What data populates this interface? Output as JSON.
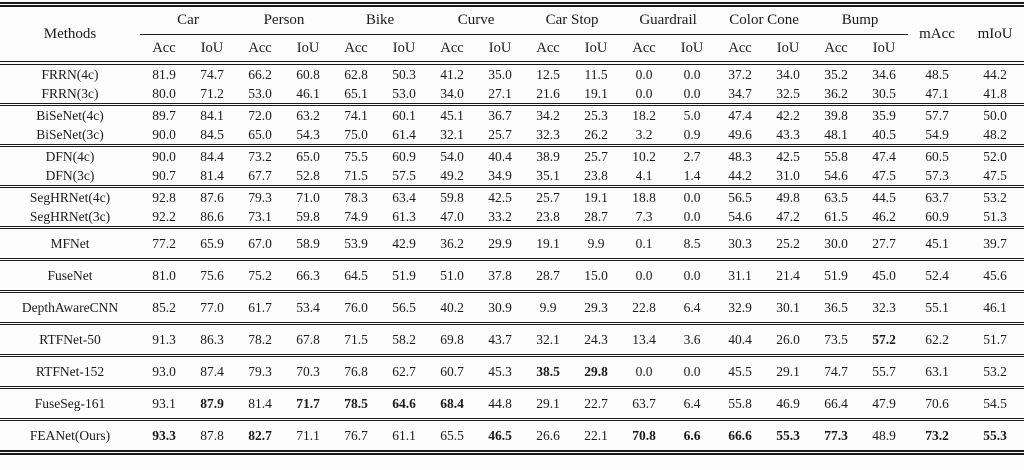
{
  "colors": {
    "text": "#1a1a1a",
    "rule": "#1a1a1a",
    "background": "#fdfdfd"
  },
  "table": {
    "method_header": "Methods",
    "groups": [
      "Car",
      "Person",
      "Bike",
      "Curve",
      "Car Stop",
      "Guardrail",
      "Color Cone",
      "Bump"
    ],
    "sub_labels": [
      "Acc",
      "IoU"
    ],
    "summary_headers": [
      "mAcc",
      "mIoU"
    ],
    "row_groups": [
      {
        "rows": [
          {
            "method": "FRRN(4c)",
            "values": [
              "81.9",
              "74.7",
              "66.2",
              "60.8",
              "62.8",
              "50.3",
              "41.2",
              "35.0",
              "12.5",
              "11.5",
              "0.0",
              "0.0",
              "37.2",
              "34.0",
              "35.2",
              "34.6",
              "48.5",
              "44.2"
            ],
            "bold": []
          },
          {
            "method": "FRRN(3c)",
            "values": [
              "80.0",
              "71.2",
              "53.0",
              "46.1",
              "65.1",
              "53.0",
              "34.0",
              "27.1",
              "21.6",
              "19.1",
              "0.0",
              "0.0",
              "34.7",
              "32.5",
              "36.2",
              "30.5",
              "47.1",
              "41.8"
            ],
            "bold": []
          }
        ]
      },
      {
        "rows": [
          {
            "method": "BiSeNet(4c)",
            "values": [
              "89.7",
              "84.1",
              "72.0",
              "63.2",
              "74.1",
              "60.1",
              "45.1",
              "36.7",
              "34.2",
              "25.3",
              "18.2",
              "5.0",
              "47.4",
              "42.2",
              "39.8",
              "35.9",
              "57.7",
              "50.0"
            ],
            "bold": []
          },
          {
            "method": "BiSeNet(3c)",
            "values": [
              "90.0",
              "84.5",
              "65.0",
              "54.3",
              "75.0",
              "61.4",
              "32.1",
              "25.7",
              "32.3",
              "26.2",
              "3.2",
              "0.9",
              "49.6",
              "43.3",
              "48.1",
              "40.5",
              "54.9",
              "48.2"
            ],
            "bold": []
          }
        ]
      },
      {
        "rows": [
          {
            "method": "DFN(4c)",
            "values": [
              "90.0",
              "84.4",
              "73.2",
              "65.0",
              "75.5",
              "60.9",
              "54.0",
              "40.4",
              "38.9",
              "25.7",
              "10.2",
              "2.7",
              "48.3",
              "42.5",
              "55.8",
              "47.4",
              "60.5",
              "52.0"
            ],
            "bold": []
          },
          {
            "method": "DFN(3c)",
            "values": [
              "90.7",
              "81.4",
              "67.7",
              "52.8",
              "71.5",
              "57.5",
              "49.2",
              "34.9",
              "35.1",
              "23.8",
              "4.1",
              "1.4",
              "44.2",
              "31.0",
              "54.6",
              "47.5",
              "57.3",
              "47.5"
            ],
            "bold": []
          }
        ]
      },
      {
        "rows": [
          {
            "method": "SegHRNet(4c)",
            "values": [
              "92.8",
              "87.6",
              "79.3",
              "71.0",
              "78.3",
              "63.4",
              "59.8",
              "42.5",
              "25.7",
              "19.1",
              "18.8",
              "0.0",
              "56.5",
              "49.8",
              "63.5",
              "44.5",
              "63.7",
              "53.2"
            ],
            "bold": []
          },
          {
            "method": "SegHRNet(3c)",
            "values": [
              "92.2",
              "86.6",
              "73.1",
              "59.8",
              "74.9",
              "61.3",
              "47.0",
              "33.2",
              "23.8",
              "28.7",
              "7.3",
              "0.0",
              "54.6",
              "47.2",
              "61.5",
              "46.2",
              "60.9",
              "51.3"
            ],
            "bold": []
          }
        ]
      },
      {
        "rows": [
          {
            "method": "MFNet",
            "values": [
              "77.2",
              "65.9",
              "67.0",
              "58.9",
              "53.9",
              "42.9",
              "36.2",
              "29.9",
              "19.1",
              "9.9",
              "0.1",
              "8.5",
              "30.3",
              "25.2",
              "30.0",
              "27.7",
              "45.1",
              "39.7"
            ],
            "bold": []
          }
        ]
      },
      {
        "rows": [
          {
            "method": "FuseNet",
            "values": [
              "81.0",
              "75.6",
              "75.2",
              "66.3",
              "64.5",
              "51.9",
              "51.0",
              "37.8",
              "28.7",
              "15.0",
              "0.0",
              "0.0",
              "31.1",
              "21.4",
              "51.9",
              "45.0",
              "52.4",
              "45.6"
            ],
            "bold": []
          }
        ]
      },
      {
        "rows": [
          {
            "method": "DepthAwareCNN",
            "values": [
              "85.2",
              "77.0",
              "61.7",
              "53.4",
              "76.0",
              "56.5",
              "40.2",
              "30.9",
              "9.9",
              "29.3",
              "22.8",
              "6.4",
              "32.9",
              "30.1",
              "36.5",
              "32.3",
              "55.1",
              "46.1"
            ],
            "bold": []
          }
        ]
      },
      {
        "rows": [
          {
            "method": "RTFNet-50",
            "values": [
              "91.3",
              "86.3",
              "78.2",
              "67.8",
              "71.5",
              "58.2",
              "69.8",
              "43.7",
              "32.1",
              "24.3",
              "13.4",
              "3.6",
              "40.4",
              "26.0",
              "73.5",
              "57.2",
              "62.2",
              "51.7"
            ],
            "bold": [
              15
            ]
          }
        ]
      },
      {
        "rows": [
          {
            "method": "RTFNet-152",
            "values": [
              "93.0",
              "87.4",
              "79.3",
              "70.3",
              "76.8",
              "62.7",
              "60.7",
              "45.3",
              "38.5",
              "29.8",
              "0.0",
              "0.0",
              "45.5",
              "29.1",
              "74.7",
              "55.7",
              "63.1",
              "53.2"
            ],
            "bold": [
              8,
              9
            ]
          }
        ]
      },
      {
        "rows": [
          {
            "method": "FuseSeg-161",
            "values": [
              "93.1",
              "87.9",
              "81.4",
              "71.7",
              "78.5",
              "64.6",
              "68.4",
              "44.8",
              "29.1",
              "22.7",
              "63.7",
              "6.4",
              "55.8",
              "46.9",
              "66.4",
              "47.9",
              "70.6",
              "54.5"
            ],
            "bold": [
              1,
              3,
              4,
              5,
              6
            ]
          }
        ]
      },
      {
        "rows": [
          {
            "method": "FEANet(Ours)",
            "values": [
              "93.3",
              "87.8",
              "82.7",
              "71.1",
              "76.7",
              "61.1",
              "65.5",
              "46.5",
              "26.6",
              "22.1",
              "70.8",
              "6.6",
              "66.6",
              "55.3",
              "77.3",
              "48.9",
              "73.2",
              "55.3"
            ],
            "bold": [
              0,
              2,
              7,
              10,
              11,
              12,
              13,
              14,
              16,
              17
            ]
          }
        ]
      }
    ]
  }
}
